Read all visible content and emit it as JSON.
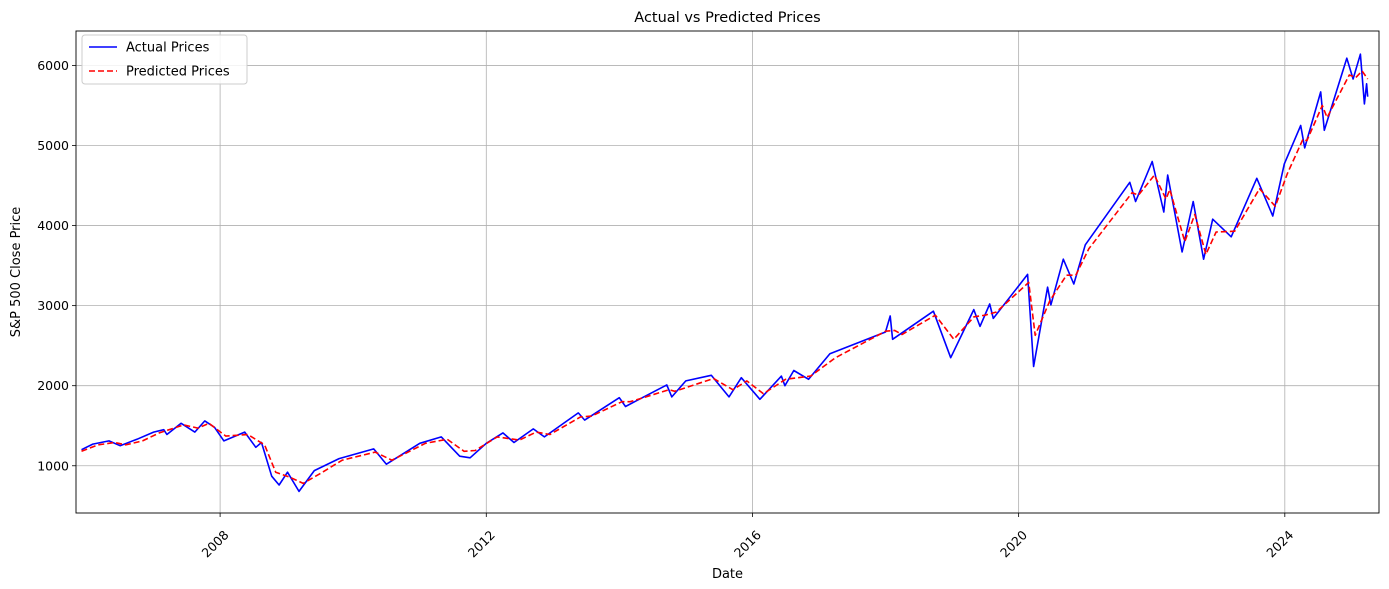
{
  "chart_data": {
    "type": "line",
    "title": "Actual vs Predicted Prices",
    "xlabel": "Date",
    "ylabel": "S&P 500 Close Price",
    "x_range": [
      "2005-11-01",
      "2025-06-01"
    ],
    "ylim": [
      410,
      6430
    ],
    "x_ticks": [
      "2008",
      "2012",
      "2016",
      "2020",
      "2024"
    ],
    "y_ticks": [
      1000,
      2000,
      3000,
      4000,
      5000,
      6000
    ],
    "grid": true,
    "legend_position": "top-left",
    "series": [
      {
        "name": "Actual Prices",
        "color": "#0000ff",
        "dash": "solid",
        "points": [
          [
            "2005-12-01",
            1200
          ],
          [
            "2006-02-01",
            1270
          ],
          [
            "2006-05-01",
            1310
          ],
          [
            "2006-07-01",
            1250
          ],
          [
            "2006-10-01",
            1330
          ],
          [
            "2007-01-01",
            1420
          ],
          [
            "2007-02-26",
            1450
          ],
          [
            "2007-03-15",
            1390
          ],
          [
            "2007-06-01",
            1530
          ],
          [
            "2007-08-15",
            1420
          ],
          [
            "2007-10-09",
            1560
          ],
          [
            "2007-12-01",
            1480
          ],
          [
            "2008-01-22",
            1310
          ],
          [
            "2008-05-15",
            1420
          ],
          [
            "2008-07-15",
            1230
          ],
          [
            "2008-08-15",
            1290
          ],
          [
            "2008-10-10",
            870
          ],
          [
            "2008-11-20",
            760
          ],
          [
            "2009-01-05",
            920
          ],
          [
            "2009-03-09",
            680
          ],
          [
            "2009-06-01",
            940
          ],
          [
            "2009-10-15",
            1090
          ],
          [
            "2010-04-23",
            1210
          ],
          [
            "2010-07-02",
            1020
          ],
          [
            "2011-01-01",
            1280
          ],
          [
            "2011-04-29",
            1360
          ],
          [
            "2011-08-08",
            1120
          ],
          [
            "2011-10-04",
            1100
          ],
          [
            "2012-01-01",
            1280
          ],
          [
            "2012-04-01",
            1410
          ],
          [
            "2012-06-01",
            1290
          ],
          [
            "2012-09-15",
            1460
          ],
          [
            "2012-11-15",
            1360
          ],
          [
            "2013-05-20",
            1660
          ],
          [
            "2013-06-24",
            1570
          ],
          [
            "2013-12-31",
            1850
          ],
          [
            "2014-02-03",
            1740
          ],
          [
            "2014-09-18",
            2010
          ],
          [
            "2014-10-15",
            1860
          ],
          [
            "2014-12-31",
            2060
          ],
          [
            "2015-05-20",
            2130
          ],
          [
            "2015-08-25",
            1860
          ],
          [
            "2015-11-01",
            2100
          ],
          [
            "2016-02-11",
            1830
          ],
          [
            "2016-06-08",
            2120
          ],
          [
            "2016-06-27",
            2000
          ],
          [
            "2016-08-15",
            2190
          ],
          [
            "2016-11-04",
            2080
          ],
          [
            "2017-03-01",
            2400
          ],
          [
            "2017-12-31",
            2670
          ],
          [
            "2018-01-26",
            2870
          ],
          [
            "2018-02-08",
            2580
          ],
          [
            "2018-09-20",
            2930
          ],
          [
            "2018-12-24",
            2350
          ],
          [
            "2019-04-30",
            2950
          ],
          [
            "2019-06-03",
            2740
          ],
          [
            "2019-07-26",
            3020
          ],
          [
            "2019-08-15",
            2840
          ],
          [
            "2020-02-19",
            3390
          ],
          [
            "2020-03-23",
            2240
          ],
          [
            "2020-06-08",
            3230
          ],
          [
            "2020-06-26",
            3010
          ],
          [
            "2020-09-02",
            3580
          ],
          [
            "2020-10-30",
            3270
          ],
          [
            "2021-01-01",
            3760
          ],
          [
            "2021-09-02",
            4540
          ],
          [
            "2021-10-04",
            4300
          ],
          [
            "2022-01-03",
            4800
          ],
          [
            "2022-03-08",
            4170
          ],
          [
            "2022-03-29",
            4630
          ],
          [
            "2022-06-16",
            3670
          ],
          [
            "2022-08-16",
            4300
          ],
          [
            "2022-10-12",
            3580
          ],
          [
            "2022-12-01",
            4080
          ],
          [
            "2023-03-13",
            3860
          ],
          [
            "2023-07-31",
            4590
          ],
          [
            "2023-10-27",
            4120
          ],
          [
            "2023-12-29",
            4770
          ],
          [
            "2024-03-28",
            5250
          ],
          [
            "2024-04-19",
            4970
          ],
          [
            "2024-07-16",
            5670
          ],
          [
            "2024-08-05",
            5190
          ],
          [
            "2024-12-06",
            6090
          ],
          [
            "2025-01-10",
            5830
          ],
          [
            "2025-02-19",
            6140
          ],
          [
            "2025-03-13",
            5520
          ],
          [
            "2025-03-25",
            5770
          ],
          [
            "2025-03-31",
            5610
          ]
        ]
      },
      {
        "name": "Predicted Prices",
        "color": "#ff0000",
        "dash": "dashed",
        "points": [
          [
            "2005-12-01",
            1180
          ],
          [
            "2006-03-01",
            1260
          ],
          [
            "2006-06-01",
            1290
          ],
          [
            "2006-08-01",
            1260
          ],
          [
            "2006-11-01",
            1310
          ],
          [
            "2007-02-01",
            1410
          ],
          [
            "2007-06-15",
            1510
          ],
          [
            "2007-09-01",
            1470
          ],
          [
            "2007-11-01",
            1530
          ],
          [
            "2008-02-01",
            1370
          ],
          [
            "2008-06-01",
            1390
          ],
          [
            "2008-09-01",
            1260
          ],
          [
            "2008-11-01",
            920
          ],
          [
            "2009-01-15",
            860
          ],
          [
            "2009-04-01",
            780
          ],
          [
            "2009-07-01",
            900
          ],
          [
            "2009-11-01",
            1070
          ],
          [
            "2010-05-01",
            1170
          ],
          [
            "2010-08-01",
            1070
          ],
          [
            "2011-02-01",
            1280
          ],
          [
            "2011-06-01",
            1330
          ],
          [
            "2011-09-01",
            1180
          ],
          [
            "2011-11-01",
            1190
          ],
          [
            "2012-03-01",
            1360
          ],
          [
            "2012-07-01",
            1320
          ],
          [
            "2012-10-01",
            1420
          ],
          [
            "2012-12-15",
            1390
          ],
          [
            "2013-06-01",
            1610
          ],
          [
            "2013-08-01",
            1620
          ],
          [
            "2014-01-15",
            1800
          ],
          [
            "2014-03-01",
            1800
          ],
          [
            "2014-10-01",
            1950
          ],
          [
            "2014-11-01",
            1930
          ],
          [
            "2015-06-01",
            2090
          ],
          [
            "2015-09-15",
            1950
          ],
          [
            "2015-12-01",
            2060
          ],
          [
            "2016-03-01",
            1900
          ],
          [
            "2016-07-01",
            2080
          ],
          [
            "2016-11-15",
            2120
          ],
          [
            "2017-04-01",
            2350
          ],
          [
            "2018-01-01",
            2680
          ],
          [
            "2018-02-20",
            2690
          ],
          [
            "2018-04-01",
            2640
          ],
          [
            "2018-10-01",
            2880
          ],
          [
            "2019-01-10",
            2580
          ],
          [
            "2019-05-01",
            2860
          ],
          [
            "2019-07-01",
            2880
          ],
          [
            "2019-09-01",
            2920
          ],
          [
            "2020-02-25",
            3290
          ],
          [
            "2020-04-01",
            2630
          ],
          [
            "2020-06-20",
            3060
          ],
          [
            "2020-09-20",
            3380
          ],
          [
            "2020-11-10",
            3380
          ],
          [
            "2021-01-20",
            3710
          ],
          [
            "2021-09-15",
            4410
          ],
          [
            "2021-10-20",
            4380
          ],
          [
            "2022-01-15",
            4630
          ],
          [
            "2022-03-20",
            4330
          ],
          [
            "2022-04-10",
            4450
          ],
          [
            "2022-07-01",
            3800
          ],
          [
            "2022-08-25",
            4140
          ],
          [
            "2022-10-25",
            3640
          ],
          [
            "2022-12-20",
            3920
          ],
          [
            "2023-04-01",
            3930
          ],
          [
            "2023-08-15",
            4460
          ],
          [
            "2023-11-10",
            4240
          ],
          [
            "2024-01-15",
            4650
          ],
          [
            "2024-04-10",
            5080
          ],
          [
            "2024-05-01",
            5060
          ],
          [
            "2024-07-25",
            5500
          ],
          [
            "2024-08-20",
            5350
          ],
          [
            "2024-12-20",
            5880
          ],
          [
            "2025-01-25",
            5850
          ],
          [
            "2025-02-28",
            5930
          ],
          [
            "2025-03-31",
            5830
          ]
        ]
      }
    ]
  }
}
